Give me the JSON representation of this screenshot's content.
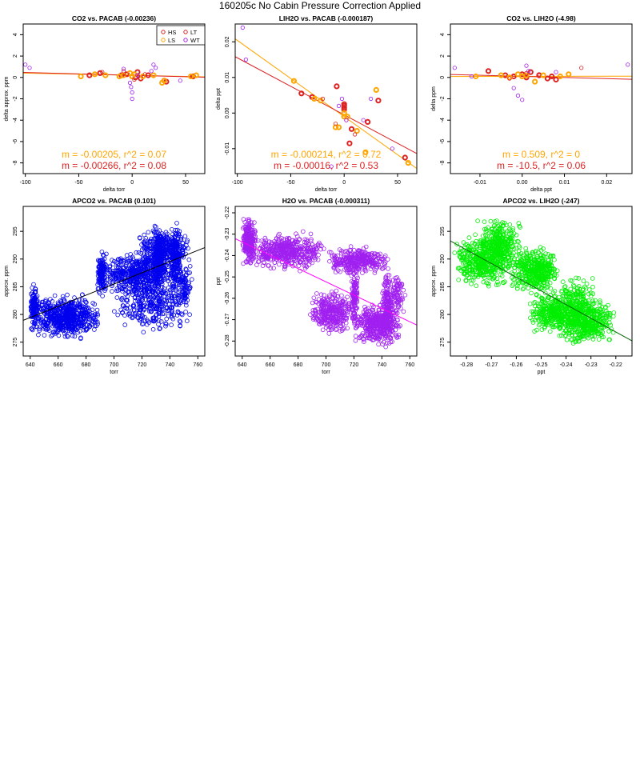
{
  "page": {
    "title": "160205c   No Cabin Pressure Correction Applied"
  },
  "colors": {
    "HS": "#dd2222",
    "LS": "#ffa500",
    "LT": "#dd2222",
    "WT": "#a020f0",
    "blue": "#0000ee",
    "purple": "#a020f0",
    "green": "#00ee00",
    "darkgreen": "#006400",
    "fitRed": "#e00000",
    "fitOrange": "#ffa500"
  },
  "chart_data": [
    {
      "id": "p1",
      "type": "scatter",
      "title": "CO2 vs. PACAB (-0.00236)",
      "xlabel": "delta torr",
      "ylabel": "delta approx. ppm",
      "xlim": [
        -102,
        68
      ],
      "ylim": [
        -9,
        5
      ],
      "xticks": [
        -100,
        -50,
        0,
        50
      ],
      "yticks": [
        -8,
        -6,
        -4,
        -2,
        0,
        2,
        4
      ],
      "legend": {
        "position": "top-right",
        "entries": [
          "HS",
          "LS",
          "LT",
          "WT"
        ]
      },
      "annotations": [
        {
          "text": "m = -0.00205, r^2 = 0.07",
          "color": "orange"
        },
        {
          "text": "m = -0.00266, r^2 = 0.08",
          "color": "red"
        }
      ],
      "fits": [
        {
          "color": "orange",
          "slope": -0.00205,
          "intercept": 0.2
        },
        {
          "color": "red",
          "slope": -0.00266,
          "intercept": 0.2
        }
      ],
      "series": [
        {
          "name": "HS",
          "color": "red",
          "bold": true,
          "points": [
            [
              -40,
              0.2
            ],
            [
              -30,
              0.4
            ],
            [
              -10,
              0.2
            ],
            [
              -5,
              0.3
            ],
            [
              0,
              0.1
            ],
            [
              3,
              0
            ],
            [
              5,
              0.5
            ],
            [
              8,
              -0.1
            ],
            [
              15,
              0.2
            ],
            [
              30,
              -0.3
            ],
            [
              32,
              -0.4
            ],
            [
              57,
              0.1
            ]
          ]
        },
        {
          "name": "LS",
          "color": "orange",
          "bold": true,
          "points": [
            [
              -48,
              0.1
            ],
            [
              -35,
              0.3
            ],
            [
              -25,
              0.2
            ],
            [
              -12,
              0.1
            ],
            [
              -8,
              0.2
            ],
            [
              -2,
              0.4
            ],
            [
              0,
              0.1
            ],
            [
              2,
              0.3
            ],
            [
              10,
              0.1
            ],
            [
              20,
              0.2
            ],
            [
              28,
              -0.5
            ],
            [
              30,
              -0.3
            ],
            [
              55,
              0.1
            ],
            [
              60,
              0.2
            ]
          ]
        },
        {
          "name": "LT",
          "color": "red",
          "bold": false,
          "points": [
            [
              -28,
              0.5
            ],
            [
              -8,
              0.6
            ],
            [
              -5,
              0.3
            ],
            [
              2,
              -0.2
            ],
            [
              5,
              0.2
            ],
            [
              12,
              0.3
            ]
          ]
        },
        {
          "name": "WT",
          "color": "purple",
          "bold": false,
          "points": [
            [
              -100,
              1.2
            ],
            [
              -96,
              0.9
            ],
            [
              -8,
              0.8
            ],
            [
              -2,
              -0.5
            ],
            [
              0,
              -1.4
            ],
            [
              0,
              -2
            ],
            [
              -1,
              -0.9
            ],
            [
              5,
              0.2
            ],
            [
              18,
              0.6
            ],
            [
              20,
              1.2
            ],
            [
              22,
              0.9
            ],
            [
              45,
              -0.3
            ]
          ]
        }
      ]
    },
    {
      "id": "p2",
      "type": "scatter",
      "title": "LIH2O vs. PACAB (-0.000187)",
      "xlabel": "delta torr",
      "ylabel": "delta ppt",
      "xlim": [
        -102,
        68
      ],
      "ylim": [
        -0.017,
        0.025
      ],
      "xticks": [
        -100,
        -50,
        0,
        50
      ],
      "yticks": [
        -0.01,
        0.0,
        0.01,
        0.02
      ],
      "ytick_labels": [
        "-0.01",
        "0.00",
        "0.01",
        "0.02"
      ],
      "annotations": [
        {
          "text": "m = -0.000214, r^2 = 0.72",
          "color": "orange"
        },
        {
          "text": "m = -0.00016, r^2 = 0.53",
          "color": "red"
        }
      ],
      "fits": [
        {
          "color": "orange",
          "slope": -0.000214,
          "intercept": -0.001
        },
        {
          "color": "red",
          "slope": -0.00016,
          "intercept": -0.0005
        }
      ],
      "series": [
        {
          "name": "HS",
          "color": "red",
          "bold": true,
          "points": [
            [
              -40,
              0.0055
            ],
            [
              -30,
              0.0045
            ],
            [
              -7,
              0.0075
            ],
            [
              0,
              0.002
            ],
            [
              0,
              0.0025
            ],
            [
              0,
              0.0015
            ],
            [
              0,
              0.001
            ],
            [
              5,
              -0.0085
            ],
            [
              7,
              -0.0045
            ],
            [
              22,
              -0.0025
            ],
            [
              32,
              0.0035
            ],
            [
              57,
              -0.0125
            ]
          ]
        },
        {
          "name": "LS",
          "color": "orange",
          "bold": true,
          "points": [
            [
              -47,
              0.009
            ],
            [
              -28,
              0.004
            ],
            [
              -22,
              0.0035
            ],
            [
              -8,
              -0.004
            ],
            [
              -5,
              -0.004
            ],
            [
              0,
              -0.001
            ],
            [
              0,
              0
            ],
            [
              3,
              -0.001
            ],
            [
              12,
              -0.005
            ],
            [
              20,
              -0.011
            ],
            [
              30,
              0.0065
            ],
            [
              60,
              -0.014
            ]
          ]
        },
        {
          "name": "LT",
          "color": "red",
          "bold": false,
          "points": [
            [
              -20,
              0.004
            ],
            [
              -8,
              -0.003
            ],
            [
              2,
              -0.002
            ],
            [
              10,
              -0.006
            ]
          ]
        },
        {
          "name": "WT",
          "color": "purple",
          "bold": false,
          "points": [
            [
              -95,
              0.024
            ],
            [
              -92,
              0.015
            ],
            [
              -5,
              0.002
            ],
            [
              -2,
              0.004
            ],
            [
              2,
              -0.002
            ],
            [
              18,
              -0.002
            ],
            [
              25,
              0.004
            ],
            [
              45,
              -0.01
            ],
            [
              -12,
              -0.015
            ]
          ]
        }
      ]
    },
    {
      "id": "p3",
      "type": "scatter",
      "title": "CO2 vs. LIH2O (-4.98)",
      "xlabel": "delta ppt",
      "ylabel": "delta ppm",
      "xlim": [
        -0.017,
        0.026
      ],
      "ylim": [
        -9,
        5
      ],
      "xticks": [
        -0.01,
        0.0,
        0.01,
        0.02
      ],
      "xtick_labels": [
        "-0.01",
        "0.00",
        "0.01",
        "0.02"
      ],
      "yticks": [
        -8,
        -6,
        -4,
        -2,
        0,
        2,
        4
      ],
      "annotations": [
        {
          "text": "m = 0.509, r^2 = 0",
          "color": "orange"
        },
        {
          "text": "m = -10.5, r^2 = 0.06",
          "color": "red"
        }
      ],
      "fits": [
        {
          "color": "orange",
          "slope": 0.509,
          "intercept": 0.1
        },
        {
          "color": "red",
          "slope": -10.5,
          "intercept": 0.1
        }
      ],
      "series": [
        {
          "name": "HS",
          "color": "red",
          "bold": true,
          "points": [
            [
              -0.008,
              0.6
            ],
            [
              -0.004,
              0.2
            ],
            [
              -0.002,
              0.1
            ],
            [
              0,
              0.3
            ],
            [
              0.001,
              0
            ],
            [
              0.002,
              0.5
            ],
            [
              0.004,
              0.2
            ],
            [
              0.006,
              -0.1
            ],
            [
              0.007,
              0.1
            ],
            [
              0.008,
              -0.2
            ]
          ]
        },
        {
          "name": "LS",
          "color": "orange",
          "bold": true,
          "points": [
            [
              -0.011,
              0.1
            ],
            [
              -0.005,
              0.2
            ],
            [
              -0.003,
              0
            ],
            [
              -0.001,
              0.3
            ],
            [
              0,
              0.1
            ],
            [
              0.001,
              0.2
            ],
            [
              0.003,
              -0.4
            ],
            [
              0.005,
              0.2
            ],
            [
              0.009,
              0.1
            ],
            [
              0.011,
              0.3
            ]
          ]
        },
        {
          "name": "LT",
          "color": "red",
          "bold": false,
          "points": [
            [
              -0.003,
              -0.1
            ],
            [
              0.001,
              0.4
            ],
            [
              0.004,
              0.3
            ],
            [
              0.014,
              0.9
            ]
          ]
        },
        {
          "name": "WT",
          "color": "purple",
          "bold": false,
          "points": [
            [
              -0.016,
              0.9
            ],
            [
              -0.012,
              0.1
            ],
            [
              -0.002,
              -1.0
            ],
            [
              0.001,
              1.1
            ],
            [
              0.0015,
              0.6
            ],
            [
              0.0,
              -2.1
            ],
            [
              -0.001,
              -1.7
            ],
            [
              0.008,
              0.5
            ],
            [
              0.025,
              1.2
            ]
          ]
        }
      ]
    },
    {
      "id": "p4",
      "type": "scatter",
      "title": "APCO2 vs. PACAB (0.101)",
      "xlabel": "torr",
      "ylabel": "approx. ppm",
      "xlim": [
        635,
        765
      ],
      "ylim": [
        272.5,
        299.5
      ],
      "xticks": [
        640,
        660,
        680,
        700,
        720,
        740,
        760
      ],
      "yticks": [
        275,
        280,
        285,
        290,
        295
      ],
      "color": "blue",
      "fit": {
        "slope": 0.101,
        "intercept": 214.8,
        "color": "#000000"
      },
      "clusters": [
        {
          "x": [
            640,
            690
          ],
          "y": [
            275,
            284
          ],
          "n": 620,
          "seed": 11
        },
        {
          "x": [
            640,
            646
          ],
          "y": [
            277,
            286
          ],
          "n": 120,
          "seed": 12
        },
        {
          "x": [
            688,
            694
          ],
          "y": [
            283,
            292
          ],
          "n": 120,
          "seed": 13
        },
        {
          "x": [
            690,
            745
          ],
          "y": [
            282,
            292
          ],
          "n": 520,
          "seed": 14
        },
        {
          "x": [
            700,
            755
          ],
          "y": [
            276,
            288
          ],
          "n": 300,
          "seed": 15
        },
        {
          "x": [
            715,
            755
          ],
          "y": [
            287,
            296
          ],
          "n": 360,
          "seed": 16
        },
        {
          "x": [
            728,
            735
          ],
          "y": [
            283,
            298
          ],
          "n": 180,
          "seed": 17
        },
        {
          "x": [
            740,
            748
          ],
          "y": [
            283,
            297
          ],
          "n": 160,
          "seed": 18
        },
        {
          "x": [
            745,
            756
          ],
          "y": [
            279,
            291
          ],
          "n": 80,
          "seed": 19
        }
      ]
    },
    {
      "id": "p5",
      "type": "scatter",
      "title": "H2O vs. PACAB (-0.000311)",
      "xlabel": "torr",
      "ylabel": "ppt",
      "xlim": [
        635,
        765
      ],
      "ylim": [
        -0.287,
        -0.217
      ],
      "xticks": [
        640,
        660,
        680,
        700,
        720,
        740,
        760
      ],
      "yticks": [
        -0.28,
        -0.27,
        -0.26,
        -0.25,
        -0.24,
        -0.23,
        -0.22
      ],
      "ytick_labels": [
        "-0.28",
        "-0.27",
        "-0.26",
        "-0.25",
        "-0.24",
        "-0.23",
        "-0.22"
      ],
      "color": "purple",
      "fit": {
        "slope": -0.000311,
        "intercept": -0.0346,
        "color": "#ff00ff"
      },
      "clusters": [
        {
          "x": [
            640,
            650
          ],
          "y": [
            -0.247,
            -0.22
          ],
          "n": 240,
          "seed": 21
        },
        {
          "x": [
            645,
            700
          ],
          "y": [
            -0.248,
            -0.228
          ],
          "n": 480,
          "seed": 22
        },
        {
          "x": [
            688,
            720
          ],
          "y": [
            -0.278,
            -0.255
          ],
          "n": 320,
          "seed": 23
        },
        {
          "x": [
            700,
            745
          ],
          "y": [
            -0.25,
            -0.235
          ],
          "n": 320,
          "seed": 24
        },
        {
          "x": [
            718,
            723
          ],
          "y": [
            -0.28,
            -0.24
          ],
          "n": 120,
          "seed": 25
        },
        {
          "x": [
            720,
            755
          ],
          "y": [
            -0.284,
            -0.26
          ],
          "n": 420,
          "seed": 26
        },
        {
          "x": [
            740,
            748
          ],
          "y": [
            -0.284,
            -0.243
          ],
          "n": 160,
          "seed": 27
        },
        {
          "x": [
            745,
            757
          ],
          "y": [
            -0.27,
            -0.245
          ],
          "n": 80,
          "seed": 28
        }
      ]
    },
    {
      "id": "p6",
      "type": "scatter",
      "title": "APCO2 vs. LIH2O (-247)",
      "xlabel": "ppt",
      "ylabel": "approx. ppm",
      "xlim": [
        -0.2865,
        -0.2135
      ],
      "ylim": [
        272.5,
        299.5
      ],
      "xticks": [
        -0.28,
        -0.27,
        -0.26,
        -0.25,
        -0.24,
        -0.23,
        -0.22
      ],
      "xtick_labels": [
        "-0.28",
        "-0.27",
        "-0.26",
        "-0.25",
        "-0.24",
        "-0.23",
        "-0.22"
      ],
      "yticks": [
        275,
        280,
        285,
        290,
        295
      ],
      "color": "green",
      "fit": {
        "slope": -247,
        "intercept": 222.5,
        "color": "#006400"
      },
      "clusters": [
        {
          "x": [
            -0.285,
            -0.262
          ],
          "y": [
            284,
            295
          ],
          "n": 420,
          "seed": 31
        },
        {
          "x": [
            -0.276,
            -0.258
          ],
          "y": [
            287,
            298
          ],
          "n": 320,
          "seed": 32
        },
        {
          "x": [
            -0.262,
            -0.243
          ],
          "y": [
            283,
            293
          ],
          "n": 420,
          "seed": 33
        },
        {
          "x": [
            -0.255,
            -0.235
          ],
          "y": [
            276,
            285
          ],
          "n": 300,
          "seed": 34
        },
        {
          "x": [
            -0.245,
            -0.22
          ],
          "y": [
            274,
            284
          ],
          "n": 520,
          "seed": 35
        },
        {
          "x": [
            -0.243,
            -0.228
          ],
          "y": [
            278,
            288
          ],
          "n": 120,
          "seed": 36
        }
      ]
    }
  ]
}
